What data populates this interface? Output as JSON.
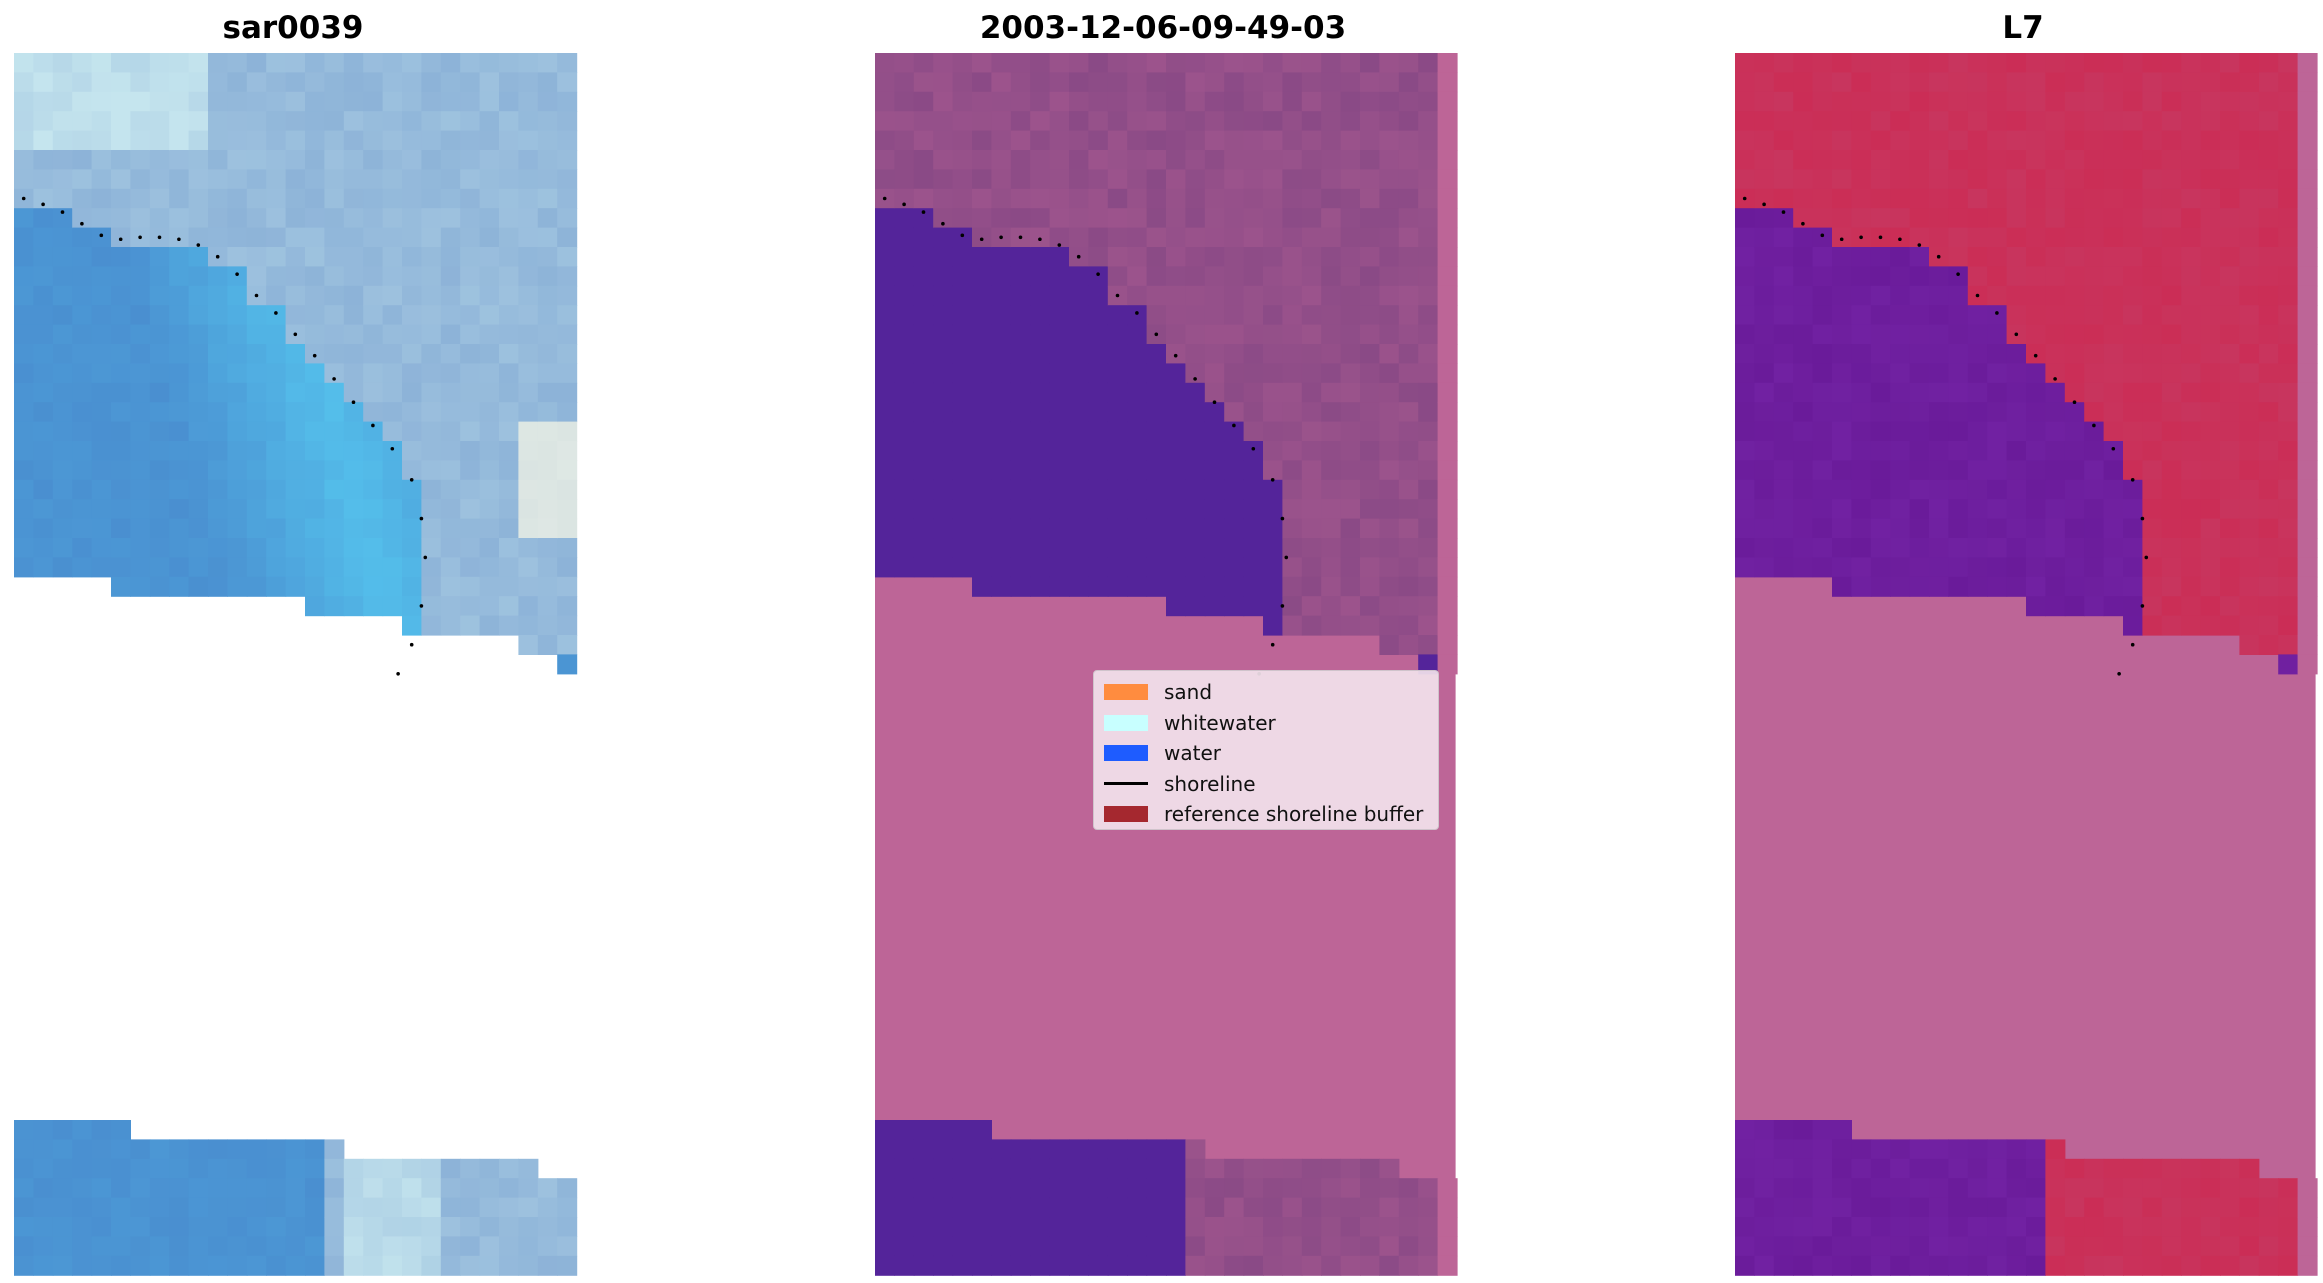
{
  "panels": [
    {
      "title": "sar0039"
    },
    {
      "title": "2003-12-06-09-49-03"
    },
    {
      "title": "L7"
    }
  ],
  "legend": {
    "items": [
      {
        "label": "sand",
        "kind": "patch",
        "color": "#ff8c3f"
      },
      {
        "label": "whitewater",
        "kind": "patch",
        "color": "#c8ffff"
      },
      {
        "label": "water",
        "kind": "patch",
        "color": "#1e5cff"
      },
      {
        "label": "shoreline",
        "kind": "line",
        "color": "#000000"
      },
      {
        "label": "reference shoreline buffer",
        "kind": "patch",
        "color": "#a5282f"
      }
    ]
  },
  "colors": {
    "rgb_water": "#4a8fd0",
    "rgb_water_bright": "#55c4ee",
    "rgb_land": "#8db3d8",
    "rgb_surf": "#cfeef2",
    "class_land": "#8a4a86",
    "class_water": "#54249a",
    "nodata_pink": "#bd6597",
    "mndwi_land": "#c8355e",
    "mndwi_water": "#6a1b9a"
  }
}
